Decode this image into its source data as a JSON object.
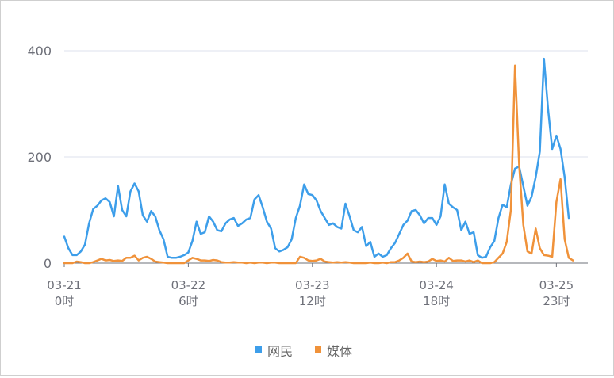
{
  "chart_data": {
    "type": "line",
    "title": "",
    "xlabel": "",
    "ylabel": "",
    "ylim": [
      0,
      420
    ],
    "yticks": [
      0,
      200,
      400
    ],
    "x_range": [
      0,
      122
    ],
    "xticks": [
      {
        "x": 0,
        "line1": "03-21",
        "line2": "0时"
      },
      {
        "x": 30,
        "line1": "03-22",
        "line2": "6时"
      },
      {
        "x": 60,
        "line1": "03-23",
        "line2": "12时"
      },
      {
        "x": 90,
        "line1": "03-24",
        "line2": "18时"
      },
      {
        "x": 119,
        "line1": "03-25",
        "line2": "23时"
      }
    ],
    "grid": true,
    "legend_position": "bottom-center",
    "series": [
      {
        "name": "网民",
        "color": "#3d9eea",
        "values": [
          50,
          28,
          15,
          15,
          22,
          35,
          75,
          102,
          108,
          118,
          122,
          115,
          88,
          145,
          100,
          88,
          135,
          150,
          135,
          90,
          78,
          98,
          88,
          62,
          45,
          12,
          10,
          10,
          12,
          15,
          20,
          42,
          78,
          55,
          58,
          88,
          78,
          62,
          60,
          75,
          82,
          85,
          70,
          75,
          82,
          85,
          120,
          128,
          105,
          78,
          65,
          28,
          22,
          25,
          30,
          45,
          85,
          108,
          148,
          130,
          128,
          118,
          98,
          85,
          72,
          75,
          68,
          65,
          112,
          88,
          62,
          58,
          68,
          32,
          40,
          12,
          18,
          12,
          15,
          28,
          38,
          55,
          72,
          80,
          98,
          100,
          90,
          75,
          85,
          85,
          72,
          88,
          148,
          112,
          105,
          100,
          62,
          78,
          55,
          58,
          15,
          10,
          12,
          30,
          42,
          85,
          110,
          105,
          148,
          178,
          182,
          145,
          108,
          125,
          162,
          210,
          385,
          290,
          215,
          240,
          215,
          162,
          85
        ]
      },
      {
        "name": "媒体",
        "color": "#f0923a",
        "values": [
          0,
          0,
          0,
          3,
          2,
          0,
          0,
          2,
          5,
          8,
          5,
          6,
          4,
          5,
          4,
          10,
          10,
          14,
          5,
          10,
          12,
          8,
          3,
          2,
          1,
          0,
          0,
          0,
          0,
          0,
          5,
          10,
          8,
          5,
          5,
          4,
          6,
          5,
          2,
          1,
          1,
          2,
          1,
          1,
          0,
          1,
          0,
          1,
          1,
          0,
          1,
          1,
          0,
          0,
          0,
          0,
          0,
          12,
          10,
          5,
          4,
          5,
          8,
          3,
          2,
          1,
          2,
          1,
          2,
          1,
          0,
          0,
          0,
          0,
          1,
          0,
          0,
          1,
          0,
          2,
          2,
          5,
          10,
          18,
          3,
          2,
          3,
          2,
          3,
          8,
          4,
          5,
          3,
          10,
          4,
          5,
          5,
          3,
          5,
          2,
          5,
          0,
          0,
          0,
          2,
          10,
          18,
          40,
          100,
          372,
          185,
          72,
          22,
          18,
          65,
          28,
          15,
          14,
          12,
          115,
          158,
          45,
          10,
          5
        ]
      }
    ]
  }
}
